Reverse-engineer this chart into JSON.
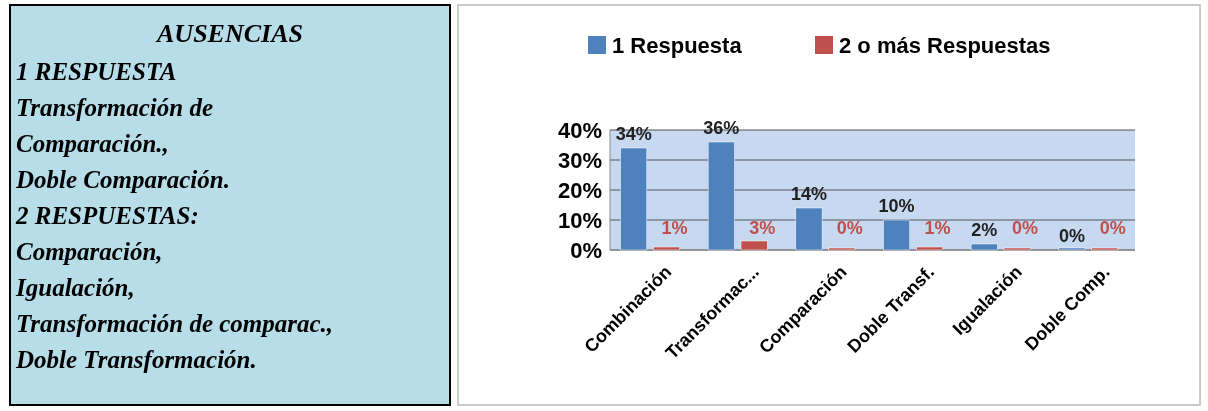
{
  "chart_data": [
    {
      "type": "other",
      "title": "AUSENCIAS",
      "annotations": [
        "1 RESPUESTA",
        "Transformación de",
        "Comparación.,",
        "Doble Comparación.",
        "2 RESPUESTAS:",
        "Comparación,",
        "Igualación,",
        "Transformación de comparac.,",
        "Doble Transformación."
      ]
    },
    {
      "type": "bar",
      "categories": [
        "Combinación",
        "Transformac...",
        "Comparación",
        "Doble Transf.",
        "Igualación",
        "Doble Comp."
      ],
      "series": [
        {
          "name": "1 Respuesta",
          "color": "#4f81bd",
          "values": [
            34,
            36,
            14,
            10,
            2,
            0
          ],
          "value_labels": [
            "34%",
            "36%",
            "14%",
            "10%",
            "2%",
            "0%"
          ]
        },
        {
          "name": "2 o más Respuestas",
          "color": "#c0504d",
          "values": [
            1,
            3,
            0,
            1,
            0,
            0
          ],
          "value_labels": [
            "1%",
            "3%",
            "0%",
            "1%",
            "0%",
            "0%"
          ]
        }
      ],
      "ylim": [
        0,
        40
      ],
      "yticks": [
        {
          "value": 0,
          "label": "0%"
        },
        {
          "value": 10,
          "label": "10%"
        },
        {
          "value": 20,
          "label": "20%"
        },
        {
          "value": 30,
          "label": "30%"
        },
        {
          "value": 40,
          "label": "40%"
        }
      ],
      "grid": "y",
      "legend": "top"
    }
  ]
}
